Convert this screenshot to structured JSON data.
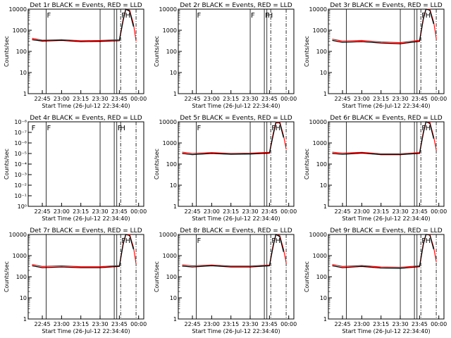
{
  "colors": {
    "events": "#000000",
    "lld": "#ff0000",
    "axes": "#000000",
    "background": "#ffffff"
  },
  "time_ticks": [
    "22:45",
    "23:00",
    "23:15",
    "23:30",
    "23:45",
    "00:00"
  ],
  "log_ticks": [
    "1",
    "10",
    "100",
    "1000",
    "10000"
  ],
  "empty_ticks": [
    "10⁰",
    "10⁻¹",
    "10⁻²",
    "10⁻³",
    "10⁻⁴",
    "10⁻⁵",
    "10⁻⁶",
    "10⁻⁷",
    "10⁻⁸"
  ],
  "chart_data": [
    {
      "type": "line",
      "title": "Det 1r BLACK = Events, RED = LLD",
      "xlabel": "Start Time (26-Jul-12 22:34:40)",
      "ylabel": "Counts/sec",
      "yscale": "log",
      "ylim": [
        1,
        10000
      ],
      "x": [
        "22:37",
        "22:45",
        "23:00",
        "23:15",
        "23:30",
        "23:45",
        "23:48",
        "23:50",
        "23:53",
        "23:56",
        "23:58"
      ],
      "series": [
        {
          "name": "Events",
          "values": [
            360,
            310,
            330,
            290,
            300,
            320,
            3000,
            10000,
            8000,
            1500,
            null
          ]
        },
        {
          "name": "LLD",
          "values": [
            420,
            340,
            360,
            320,
            330,
            360,
            3500,
            11000,
            9000,
            2000,
            300
          ]
        }
      ],
      "markers": [
        {
          "time": "22:48",
          "label": "F"
        },
        {
          "time": "23:46",
          "label": "F"
        },
        {
          "time": "23:49",
          "label": "H"
        }
      ]
    },
    {
      "type": "line",
      "title": "Det 2r BLACK = Events, RED = LLD",
      "xlabel": "Start Time (26-Jul-12 22:34:40)",
      "ylabel": "Counts/sec",
      "yscale": "log",
      "ylim": [
        1,
        10000
      ],
      "x": [],
      "series": [],
      "markers": [
        {
          "time": "22:48",
          "label": "F"
        },
        {
          "time": "23:30",
          "label": "F"
        },
        {
          "time": "23:41",
          "label": "F"
        },
        {
          "time": "23:43",
          "label": "H"
        }
      ]
    },
    {
      "type": "line",
      "title": "Det 3r BLACK = Events, RED = LLD",
      "xlabel": "Start Time (26-Jul-12 22:34:40)",
      "ylabel": "Counts/sec",
      "yscale": "log",
      "ylim": [
        1,
        10000
      ],
      "x": [
        "22:37",
        "22:45",
        "23:00",
        "23:15",
        "23:30",
        "23:45",
        "23:48",
        "23:50",
        "23:53",
        "23:56",
        "23:58"
      ],
      "series": [
        {
          "name": "Events",
          "values": [
            330,
            270,
            290,
            250,
            230,
            300,
            3500,
            12000,
            9000,
            2000,
            null
          ]
        },
        {
          "name": "LLD",
          "values": [
            380,
            310,
            330,
            280,
            260,
            340,
            4000,
            13000,
            10000,
            2500,
            400
          ]
        }
      ],
      "markers": [
        {
          "time": "23:46",
          "label": "F"
        },
        {
          "time": "23:49",
          "label": "H"
        }
      ]
    },
    {
      "type": "line",
      "title": "Det 4r BLACK = Events, RED = LLD",
      "xlabel": "Start Time (26-Jul-12 22:34:40)",
      "ylabel": "Counts/sec",
      "yscale": "log",
      "x": [],
      "series": [],
      "markers": [
        {
          "time": "22:36",
          "label": "F"
        },
        {
          "time": "22:48",
          "label": "F"
        },
        {
          "time": "23:43",
          "label": "F"
        },
        {
          "time": "23:45",
          "label": "H"
        }
      ]
    },
    {
      "type": "line",
      "title": "Det 5r BLACK = Events, RED = LLD",
      "xlabel": "Start Time (26-Jul-12 22:34:40)",
      "ylabel": "Counts/sec",
      "yscale": "log",
      "ylim": [
        1,
        10000
      ],
      "x": [
        "22:37",
        "22:45",
        "23:00",
        "23:15",
        "23:30",
        "23:45",
        "23:48",
        "23:50",
        "23:53",
        "23:56",
        "23:58"
      ],
      "series": [
        {
          "name": "Events",
          "values": [
            320,
            280,
            320,
            290,
            300,
            330,
            2500,
            9000,
            9000,
            1800,
            null
          ]
        },
        {
          "name": "LLD",
          "values": [
            370,
            320,
            350,
            320,
            330,
            360,
            3000,
            10000,
            10000,
            2200,
            500
          ]
        }
      ],
      "markers": [
        {
          "time": "22:48",
          "label": "F"
        },
        {
          "time": "23:46",
          "label": "F"
        },
        {
          "time": "23:49",
          "label": "H"
        }
      ]
    },
    {
      "type": "line",
      "title": "Det 6r BLACK = Events, RED = LLD",
      "xlabel": "Start Time (26-Jul-12 22:34:40)",
      "ylabel": "Counts/sec",
      "yscale": "log",
      "ylim": [
        1,
        10000
      ],
      "x": [
        "22:37",
        "22:45",
        "23:00",
        "23:15",
        "23:30",
        "23:45",
        "23:48",
        "23:50",
        "23:53",
        "23:56",
        "23:58"
      ],
      "series": [
        {
          "name": "Events",
          "values": [
            320,
            290,
            330,
            280,
            280,
            320,
            3000,
            10000,
            8500,
            1600,
            null
          ]
        },
        {
          "name": "LLD",
          "values": [
            370,
            330,
            360,
            310,
            310,
            350,
            3500,
            11000,
            9500,
            2000,
            450
          ]
        }
      ],
      "markers": [
        {
          "time": "23:46",
          "label": "F"
        },
        {
          "time": "23:49",
          "label": "H"
        }
      ]
    },
    {
      "type": "line",
      "title": "Det 7r BLACK = Events, RED = LLD",
      "xlabel": "Start Time (26-Jul-12 22:34:40)",
      "ylabel": "Counts/sec",
      "yscale": "log",
      "ylim": [
        1,
        10000
      ],
      "x": [
        "22:37",
        "22:45",
        "23:00",
        "23:15",
        "23:30",
        "23:45",
        "23:48",
        "23:50",
        "23:53",
        "23:56",
        "23:58"
      ],
      "series": [
        {
          "name": "Events",
          "values": [
            330,
            270,
            290,
            270,
            270,
            310,
            3500,
            12000,
            9000,
            2000,
            null
          ]
        },
        {
          "name": "LLD",
          "values": [
            380,
            310,
            330,
            300,
            300,
            340,
            4000,
            13000,
            10000,
            2500,
            400
          ]
        }
      ],
      "markers": [
        {
          "time": "23:46",
          "label": "F"
        },
        {
          "time": "23:49",
          "label": "H"
        }
      ]
    },
    {
      "type": "line",
      "title": "Det 8r BLACK = Events, RED = LLD",
      "xlabel": "Start Time (26-Jul-12 22:34:40)",
      "ylabel": "Counts/sec",
      "yscale": "log",
      "ylim": [
        1,
        10000
      ],
      "x": [
        "22:37",
        "22:45",
        "23:00",
        "23:15",
        "23:30",
        "23:45",
        "23:48",
        "23:50",
        "23:53",
        "23:56",
        "23:58"
      ],
      "series": [
        {
          "name": "Events",
          "values": [
            320,
            290,
            330,
            290,
            290,
            330,
            3000,
            10000,
            8000,
            1500,
            null
          ]
        },
        {
          "name": "LLD",
          "values": [
            370,
            330,
            360,
            320,
            320,
            360,
            3500,
            11000,
            9000,
            2000,
            450
          ]
        }
      ],
      "markers": [
        {
          "time": "22:48",
          "label": "F"
        },
        {
          "time": "23:46",
          "label": "F"
        },
        {
          "time": "23:49",
          "label": "H"
        }
      ]
    },
    {
      "type": "line",
      "title": "Det 9r BLACK = Events, RED = LLD",
      "xlabel": "Start Time (26-Jul-12 22:34:40)",
      "ylabel": "Counts/sec",
      "yscale": "log",
      "ylim": [
        1,
        10000
      ],
      "x": [
        "22:37",
        "22:45",
        "23:00",
        "23:15",
        "23:30",
        "23:45",
        "23:48",
        "23:50",
        "23:53",
        "23:56",
        "23:58"
      ],
      "series": [
        {
          "name": "Events",
          "values": [
            330,
            270,
            310,
            260,
            250,
            300,
            3500,
            12000,
            9500,
            2000,
            null
          ]
        },
        {
          "name": "LLD",
          "values": [
            380,
            310,
            340,
            290,
            280,
            330,
            4000,
            13000,
            10500,
            2500,
            500
          ]
        }
      ],
      "markers": [
        {
          "time": "23:46",
          "label": "F"
        },
        {
          "time": "23:49",
          "label": "H"
        }
      ]
    }
  ]
}
